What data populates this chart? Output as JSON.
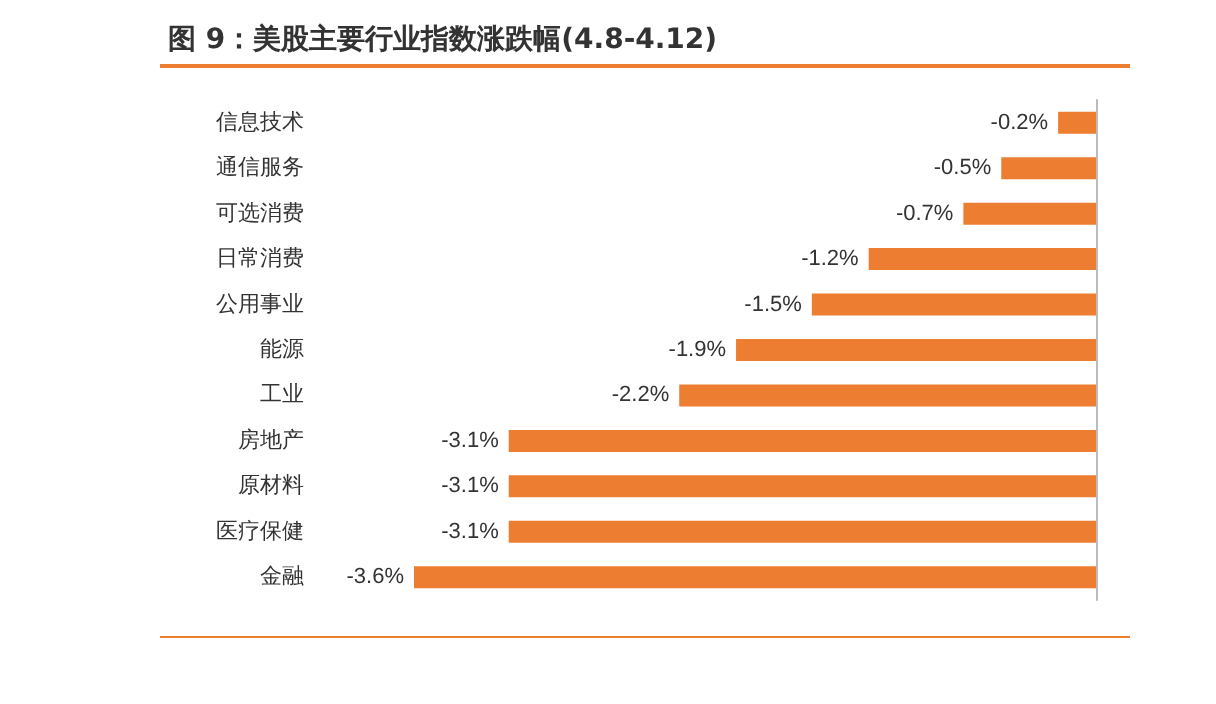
{
  "chart_data": {
    "type": "bar",
    "orientation": "horizontal",
    "title": "图 9：美股主要行业指数涨跌幅(4.8-4.12)",
    "categories": [
      "信息技术",
      "通信服务",
      "可选消费",
      "日常消费",
      "公用事业",
      "能源",
      "工业",
      "房地产",
      "原材料",
      "医疗保健",
      "金融"
    ],
    "values": [
      -0.2,
      -0.5,
      -0.7,
      -1.2,
      -1.5,
      -1.9,
      -2.2,
      -3.1,
      -3.1,
      -3.1,
      -3.6
    ],
    "value_labels": [
      "-0.2%",
      "-0.5%",
      "-0.7%",
      "-1.2%",
      "-1.5%",
      "-1.9%",
      "-2.2%",
      "-3.1%",
      "-3.1%",
      "-3.1%",
      "-3.6%"
    ],
    "color": "#ed7d31"
  }
}
